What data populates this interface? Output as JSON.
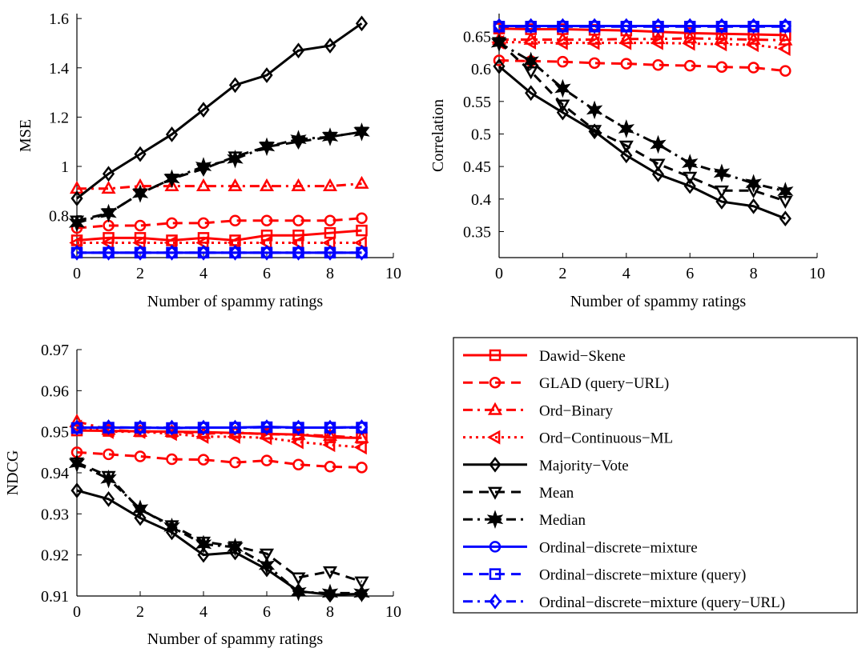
{
  "styles": {
    "Dawid-Skene": {
      "color": "#ff0000",
      "dash": "",
      "marker": "square"
    },
    "GLAD (query-URL)": {
      "color": "#ff0000",
      "dash": "12,8",
      "marker": "circle"
    },
    "Ord-Binary": {
      "color": "#ff0000",
      "dash": "12,6,3,6",
      "marker": "triangle-up"
    },
    "Ord-Continuous-ML": {
      "color": "#ff0000",
      "dash": "3,5",
      "marker": "triangle-left"
    },
    "Majority-Vote": {
      "color": "#000000",
      "dash": "",
      "marker": "diamond"
    },
    "Mean": {
      "color": "#000000",
      "dash": "12,8",
      "marker": "triangle-down"
    },
    "Median": {
      "color": "#000000",
      "dash": "12,6,3,6",
      "marker": "hexagram"
    },
    "Ordinal-discrete-mixture": {
      "color": "#0000ff",
      "dash": "",
      "marker": "circle"
    },
    "Ordinal-discrete-mixture (query)": {
      "color": "#0000ff",
      "dash": "12,8",
      "marker": "square"
    },
    "Ordinal-discrete-mixture (query-URL)": {
      "color": "#0000ff",
      "dash": "12,6,3,6",
      "marker": "diamond"
    }
  },
  "legend": {
    "entries": [
      "Dawid−Skene",
      "GLAD (query−URL)",
      "Ord−Binary",
      "Ord−Continuous−ML",
      "Majority−Vote",
      "Mean",
      "Median",
      "Ordinal−discrete−mixture",
      "Ordinal−discrete−mixture  (query)",
      "Ordinal−discrete−mixture  (query−URL)"
    ],
    "keys": [
      "Dawid-Skene",
      "GLAD (query-URL)",
      "Ord-Binary",
      "Ord-Continuous-ML",
      "Majority-Vote",
      "Mean",
      "Median",
      "Ordinal-discrete-mixture",
      "Ordinal-discrete-mixture (query)",
      "Ordinal-discrete-mixture (query-URL)"
    ]
  },
  "chart_data": [
    {
      "type": "line",
      "xlabel": "Number of spammy ratings",
      "ylabel": "MSE",
      "xlim": [
        0,
        10
      ],
      "ylim": [
        0.63,
        1.62
      ],
      "xticks": [
        0,
        2,
        4,
        6,
        8,
        10
      ],
      "xtick_labels": [
        "0",
        "2",
        "4",
        "6",
        "8",
        "10"
      ],
      "yticks": [
        0.8,
        1.0,
        1.2,
        1.4,
        1.6
      ],
      "ytick_labels": [
        "0.8",
        "1",
        "1.2",
        "1.4",
        "1.6"
      ],
      "x": [
        0,
        1,
        2,
        3,
        4,
        5,
        6,
        7,
        8,
        9
      ],
      "series": [
        {
          "name": "Dawid-Skene",
          "values": [
            0.7,
            0.71,
            0.71,
            0.7,
            0.71,
            0.7,
            0.72,
            0.72,
            0.73,
            0.74
          ]
        },
        {
          "name": "GLAD (query-URL)",
          "values": [
            0.75,
            0.76,
            0.76,
            0.77,
            0.77,
            0.78,
            0.78,
            0.78,
            0.78,
            0.79
          ]
        },
        {
          "name": "Ord-Binary",
          "values": [
            0.91,
            0.91,
            0.92,
            0.92,
            0.92,
            0.92,
            0.92,
            0.92,
            0.92,
            0.93
          ]
        },
        {
          "name": "Ord-Continuous-ML",
          "values": [
            0.69,
            0.69,
            0.69,
            0.69,
            0.69,
            0.69,
            0.69,
            0.69,
            0.69,
            0.69
          ]
        },
        {
          "name": "Majority-Vote",
          "values": [
            0.87,
            0.97,
            1.05,
            1.13,
            1.23,
            1.33,
            1.37,
            1.47,
            1.49,
            1.58
          ]
        },
        {
          "name": "Mean",
          "values": [
            0.78,
            0.81,
            0.89,
            0.95,
            0.99,
            1.04,
            1.08,
            1.1,
            1.12,
            1.14
          ]
        },
        {
          "name": "Median",
          "values": [
            0.77,
            0.81,
            0.89,
            0.95,
            1.0,
            1.03,
            1.08,
            1.11,
            1.12,
            1.14
          ]
        },
        {
          "name": "Ordinal-discrete-mixture",
          "values": [
            0.65,
            0.65,
            0.65,
            0.65,
            0.65,
            0.65,
            0.65,
            0.65,
            0.65,
            0.65
          ]
        },
        {
          "name": "Ordinal-discrete-mixture (query)",
          "values": [
            0.65,
            0.65,
            0.65,
            0.65,
            0.65,
            0.65,
            0.65,
            0.65,
            0.65,
            0.65
          ]
        },
        {
          "name": "Ordinal-discrete-mixture (query-URL)",
          "values": [
            0.65,
            0.65,
            0.65,
            0.65,
            0.65,
            0.65,
            0.65,
            0.65,
            0.65,
            0.65
          ]
        }
      ]
    },
    {
      "type": "line",
      "xlabel": "Number of spammy ratings",
      "ylabel": "Correlation",
      "xlim": [
        0,
        10
      ],
      "ylim": [
        0.31,
        0.685
      ],
      "xticks": [
        0,
        2,
        4,
        6,
        8,
        10
      ],
      "xtick_labels": [
        "0",
        "2",
        "4",
        "6",
        "8",
        "10"
      ],
      "yticks": [
        0.35,
        0.4,
        0.45,
        0.5,
        0.55,
        0.6,
        0.65
      ],
      "ytick_labels": [
        "0.35",
        "0.4",
        "0.45",
        "0.5",
        "0.55",
        "0.6",
        "0.65"
      ],
      "x": [
        0,
        1,
        2,
        3,
        4,
        5,
        6,
        7,
        8,
        9
      ],
      "series": [
        {
          "name": "Dawid-Skene",
          "values": [
            0.662,
            0.661,
            0.661,
            0.66,
            0.659,
            0.657,
            0.655,
            0.654,
            0.653,
            0.652
          ]
        },
        {
          "name": "GLAD (query-URL)",
          "values": [
            0.613,
            0.612,
            0.611,
            0.609,
            0.608,
            0.606,
            0.605,
            0.603,
            0.602,
            0.597
          ]
        },
        {
          "name": "Ord-Binary",
          "values": [
            0.645,
            0.645,
            0.645,
            0.645,
            0.646,
            0.646,
            0.647,
            0.646,
            0.645,
            0.644
          ]
        },
        {
          "name": "Ord-Continuous-ML",
          "values": [
            0.641,
            0.641,
            0.64,
            0.64,
            0.64,
            0.64,
            0.639,
            0.638,
            0.637,
            0.631
          ]
        },
        {
          "name": "Majority-Vote",
          "values": [
            0.604,
            0.563,
            0.533,
            0.504,
            0.467,
            0.438,
            0.42,
            0.396,
            0.389,
            0.37
          ]
        },
        {
          "name": "Mean",
          "values": [
            0.641,
            0.596,
            0.545,
            0.506,
            0.482,
            0.454,
            0.434,
            0.413,
            0.413,
            0.397
          ]
        },
        {
          "name": "Median",
          "values": [
            0.64,
            0.612,
            0.57,
            0.537,
            0.508,
            0.484,
            0.455,
            0.44,
            0.424,
            0.412
          ]
        },
        {
          "name": "Ordinal-discrete-mixture",
          "values": [
            0.666,
            0.666,
            0.666,
            0.666,
            0.666,
            0.666,
            0.666,
            0.666,
            0.666,
            0.666
          ]
        },
        {
          "name": "Ordinal-discrete-mixture (query)",
          "values": [
            0.665,
            0.665,
            0.665,
            0.665,
            0.665,
            0.665,
            0.665,
            0.665,
            0.665,
            0.665
          ]
        },
        {
          "name": "Ordinal-discrete-mixture (query-URL)",
          "values": [
            0.666,
            0.666,
            0.666,
            0.666,
            0.666,
            0.666,
            0.666,
            0.666,
            0.666,
            0.666
          ]
        }
      ]
    },
    {
      "type": "line",
      "xlabel": "Number of spammy ratings",
      "ylabel": "NDCG",
      "xlim": [
        0,
        10
      ],
      "ylim": [
        0.91,
        0.97
      ],
      "xticks": [
        0,
        2,
        4,
        6,
        8,
        10
      ],
      "xtick_labels": [
        "0",
        "2",
        "4",
        "6",
        "8",
        "10"
      ],
      "yticks": [
        0.91,
        0.92,
        0.93,
        0.94,
        0.95,
        0.96,
        0.97
      ],
      "ytick_labels": [
        "0.91",
        "0.92",
        "0.93",
        "0.94",
        "0.95",
        "0.96",
        "0.97"
      ],
      "x": [
        0,
        1,
        2,
        3,
        4,
        5,
        6,
        7,
        8,
        9
      ],
      "series": [
        {
          "name": "Dawid-Skene",
          "values": [
            0.9503,
            0.9502,
            0.9501,
            0.95,
            0.9499,
            0.9497,
            0.9495,
            0.9493,
            0.9486,
            0.9485
          ]
        },
        {
          "name": "GLAD (query-URL)",
          "values": [
            0.945,
            0.9445,
            0.944,
            0.9433,
            0.9432,
            0.9425,
            0.943,
            0.942,
            0.9415,
            0.9413
          ]
        },
        {
          "name": "Ord-Binary",
          "values": [
            0.9525,
            0.9505,
            0.95,
            0.95,
            0.9495,
            0.9498,
            0.9494,
            0.9493,
            0.949,
            0.9485
          ]
        },
        {
          "name": "Ord-Continuous-ML",
          "values": [
            0.9512,
            0.95,
            0.95,
            0.9495,
            0.9488,
            0.9488,
            0.9485,
            0.9475,
            0.9468,
            0.9462
          ]
        },
        {
          "name": "Majority-Vote",
          "values": [
            0.9357,
            0.9336,
            0.929,
            0.9255,
            0.92,
            0.9206,
            0.9165,
            0.9112,
            0.9103,
            0.9105
          ]
        },
        {
          "name": "Mean",
          "values": [
            0.9425,
            0.9392,
            0.931,
            0.9272,
            0.9232,
            0.9221,
            0.9203,
            0.9145,
            0.916,
            0.9135
          ]
        },
        {
          "name": "Median",
          "values": [
            0.9423,
            0.9385,
            0.9312,
            0.9268,
            0.9226,
            0.9219,
            0.9175,
            0.911,
            0.9107,
            0.9107
          ]
        },
        {
          "name": "Ordinal-discrete-mixture",
          "values": [
            0.951,
            0.951,
            0.951,
            0.9509,
            0.951,
            0.951,
            0.9512,
            0.951,
            0.951,
            0.9511
          ]
        },
        {
          "name": "Ordinal-discrete-mixture (query)",
          "values": [
            0.9509,
            0.951,
            0.951,
            0.9509,
            0.951,
            0.951,
            0.9511,
            0.951,
            0.951,
            0.951
          ]
        },
        {
          "name": "Ordinal-discrete-mixture (query-URL)",
          "values": [
            0.951,
            0.9511,
            0.951,
            0.951,
            0.951,
            0.951,
            0.9511,
            0.951,
            0.951,
            0.9511
          ]
        }
      ]
    }
  ]
}
